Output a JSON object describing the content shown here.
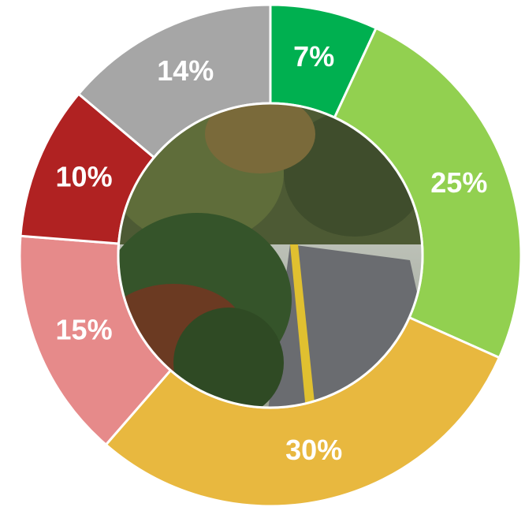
{
  "chart_data": {
    "type": "donut",
    "values": [
      7,
      25,
      30,
      15,
      10,
      14
    ],
    "value_labels": [
      "7%",
      "25%",
      "30%",
      "15%",
      "10%",
      "14%"
    ],
    "colors": [
      "#00b050",
      "#92d050",
      "#e8b83f",
      "#e68a8a",
      "#b02222",
      "#a6a6a6"
    ]
  }
}
